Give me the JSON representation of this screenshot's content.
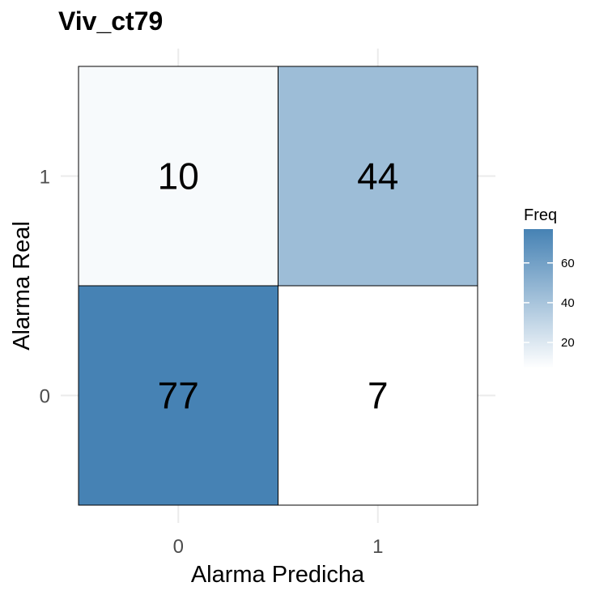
{
  "chart_data": {
    "type": "heatmap",
    "title": "Viv_ct79",
    "xlabel": "Alarma Predicha",
    "ylabel": "Alarma Real",
    "x_categories": [
      "0",
      "1"
    ],
    "y_categories": [
      "0",
      "1"
    ],
    "cells": [
      {
        "x": "0",
        "y": "1",
        "value": 10
      },
      {
        "x": "1",
        "y": "1",
        "value": 44
      },
      {
        "x": "0",
        "y": "0",
        "value": 77
      },
      {
        "x": "1",
        "y": "0",
        "value": 7
      }
    ],
    "legend": {
      "title": "Freq",
      "ticks": [
        20,
        40,
        60
      ],
      "range": [
        7,
        77
      ],
      "low_color": "#ffffff",
      "high_color": "#4682b4"
    },
    "grid": true
  }
}
